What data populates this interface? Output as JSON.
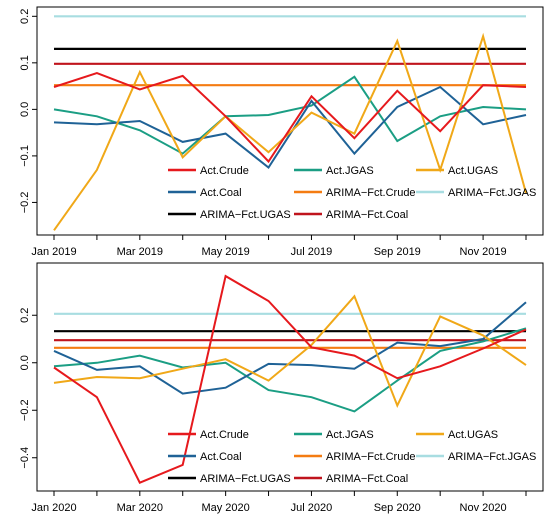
{
  "colors": {
    "Act.Crude": "#e6191d",
    "Act.JGAS": "#1b9e84",
    "Act.UGAS": "#f0a818",
    "Act.Coal": "#1f6296",
    "ARIMA-Fct.Crude": "#f47c12",
    "ARIMA-Fct.JGAS": "#a8dde1",
    "ARIMA-Fct.UGAS": "#000000",
    "ARIMA-Fct.Coal": "#c0141d"
  },
  "chart_data": [
    {
      "type": "line",
      "title": "",
      "xlabel": "",
      "ylabel": "",
      "x": [
        "Jan 2019",
        "Feb 2019",
        "Mar 2019",
        "Apr 2019",
        "May 2019",
        "Jun 2019",
        "Jul 2019",
        "Aug 2019",
        "Sep 2019",
        "Oct 2019",
        "Nov 2019",
        "Dec 2019"
      ],
      "x_tick_labels": [
        "Jan 2019",
        "Mar 2019",
        "May 2019",
        "Jul 2019",
        "Sep 2019",
        "Nov 2019"
      ],
      "ylim": [
        -0.27,
        0.22
      ],
      "y_ticks": [
        -0.2,
        -0.1,
        0.0,
        0.1,
        0.2
      ],
      "y_tick_labels": [
        "−0.2",
        "−0.1",
        "0.0",
        "0.1",
        "0.2"
      ],
      "grid": false,
      "legend_position": "bottom-right",
      "legend_order": [
        "Act.Crude",
        "Act.Coal",
        "ARIMA-Fct.UGAS",
        "Act.JGAS",
        "ARIMA-Fct.Crude",
        "ARIMA-Fct.Coal",
        "Act.UGAS",
        "ARIMA-Fct.JGAS"
      ],
      "legend_labels": [
        "Act.Crude",
        "Act.Coal",
        "ARIMA−Fct.UGAS",
        "Act.JGAS",
        "ARIMA−Fct.Crude",
        "ARIMA−Fct.Coal",
        "Act.UGAS",
        "ARIMA−Fct.JGAS"
      ],
      "series": [
        {
          "name": "Act.Crude",
          "values": [
            0.048,
            0.078,
            0.043,
            0.072,
            -0.015,
            -0.112,
            0.028,
            -0.062,
            0.04,
            -0.047,
            0.052,
            0.048
          ]
        },
        {
          "name": "Act.JGAS",
          "values": [
            0.0,
            -0.015,
            -0.045,
            -0.095,
            -0.015,
            -0.012,
            0.008,
            0.07,
            -0.068,
            -0.015,
            0.005,
            0.0
          ]
        },
        {
          "name": "Act.UGAS",
          "values": [
            -0.26,
            -0.13,
            0.08,
            -0.103,
            -0.015,
            -0.092,
            -0.007,
            -0.052,
            0.147,
            -0.13,
            0.157,
            -0.18
          ]
        },
        {
          "name": "Act.Coal",
          "values": [
            -0.028,
            -0.032,
            -0.025,
            -0.07,
            -0.052,
            -0.125,
            0.018,
            -0.095,
            0.005,
            0.048,
            -0.032,
            -0.012
          ]
        },
        {
          "name": "ARIMA-Fct.Crude",
          "values": [
            0.052,
            0.052,
            0.052,
            0.052,
            0.052,
            0.052,
            0.052,
            0.052,
            0.052,
            0.052,
            0.052,
            0.052
          ]
        },
        {
          "name": "ARIMA-Fct.JGAS",
          "values": [
            0.2,
            0.2,
            0.2,
            0.2,
            0.2,
            0.2,
            0.2,
            0.2,
            0.2,
            0.2,
            0.2,
            0.2
          ]
        },
        {
          "name": "ARIMA-Fct.UGAS",
          "values": [
            0.13,
            0.13,
            0.13,
            0.13,
            0.13,
            0.13,
            0.13,
            0.13,
            0.13,
            0.13,
            0.13,
            0.13
          ]
        },
        {
          "name": "ARIMA-Fct.Coal",
          "values": [
            0.098,
            0.098,
            0.098,
            0.098,
            0.098,
            0.098,
            0.098,
            0.098,
            0.098,
            0.098,
            0.098,
            0.098
          ]
        }
      ]
    },
    {
      "type": "line",
      "title": "",
      "xlabel": "",
      "ylabel": "",
      "x": [
        "Jan 2020",
        "Feb 2020",
        "Mar 2020",
        "Apr 2020",
        "May 2020",
        "Jun 2020",
        "Jul 2020",
        "Aug 2020",
        "Sep 2020",
        "Oct 2020",
        "Nov 2020",
        "Dec 2020"
      ],
      "x_tick_labels": [
        "Jan 2020",
        "Mar 2020",
        "May 2020",
        "Jul 2020",
        "Sep 2020",
        "Nov 2020"
      ],
      "ylim": [
        -0.54,
        0.42
      ],
      "y_ticks": [
        -0.4,
        -0.2,
        0.0,
        0.2
      ],
      "y_tick_labels": [
        "−0.4",
        "−0.2",
        "0.0",
        "0.2"
      ],
      "grid": false,
      "legend_position": "bottom-right",
      "legend_order": [
        "Act.Crude",
        "Act.Coal",
        "ARIMA-Fct.UGAS",
        "Act.JGAS",
        "ARIMA-Fct.Crude",
        "ARIMA-Fct.Coal",
        "Act.UGAS",
        "ARIMA-Fct.JGAS"
      ],
      "legend_labels": [
        "Act.Crude",
        "Act.Coal",
        "ARIMA−Fct.UGAS",
        "Act.JGAS",
        "ARIMA−Fct.Crude",
        "ARIMA−Fct.Coal",
        "Act.UGAS",
        "ARIMA−Fct.JGAS"
      ],
      "series": [
        {
          "name": "Act.Crude",
          "values": [
            -0.02,
            -0.145,
            -0.505,
            -0.43,
            0.365,
            0.26,
            0.065,
            0.03,
            -0.065,
            -0.015,
            0.06,
            0.14
          ]
        },
        {
          "name": "Act.JGAS",
          "values": [
            -0.015,
            0.0,
            0.03,
            -0.02,
            0.0,
            -0.115,
            -0.145,
            -0.205,
            -0.075,
            0.05,
            0.09,
            0.145
          ]
        },
        {
          "name": "Act.UGAS",
          "values": [
            -0.085,
            -0.06,
            -0.065,
            -0.025,
            0.015,
            -0.075,
            0.075,
            0.28,
            -0.18,
            0.195,
            0.115,
            -0.01
          ]
        },
        {
          "name": "Act.Coal",
          "values": [
            0.05,
            -0.03,
            -0.015,
            -0.13,
            -0.105,
            -0.005,
            -0.01,
            -0.025,
            0.085,
            0.07,
            0.1,
            0.255
          ]
        },
        {
          "name": "ARIMA-Fct.Crude",
          "values": [
            0.063,
            0.063,
            0.063,
            0.063,
            0.063,
            0.063,
            0.063,
            0.063,
            0.063,
            0.063,
            0.063,
            0.063
          ]
        },
        {
          "name": "ARIMA-Fct.JGAS",
          "values": [
            0.206,
            0.206,
            0.206,
            0.206,
            0.206,
            0.206,
            0.206,
            0.206,
            0.206,
            0.206,
            0.206,
            0.206
          ]
        },
        {
          "name": "ARIMA-Fct.UGAS",
          "values": [
            0.133,
            0.133,
            0.133,
            0.133,
            0.133,
            0.133,
            0.133,
            0.133,
            0.133,
            0.133,
            0.133,
            0.133
          ]
        },
        {
          "name": "ARIMA-Fct.Coal",
          "values": [
            0.095,
            0.095,
            0.095,
            0.095,
            0.095,
            0.095,
            0.095,
            0.095,
            0.095,
            0.095,
            0.095,
            0.095
          ]
        }
      ]
    }
  ]
}
